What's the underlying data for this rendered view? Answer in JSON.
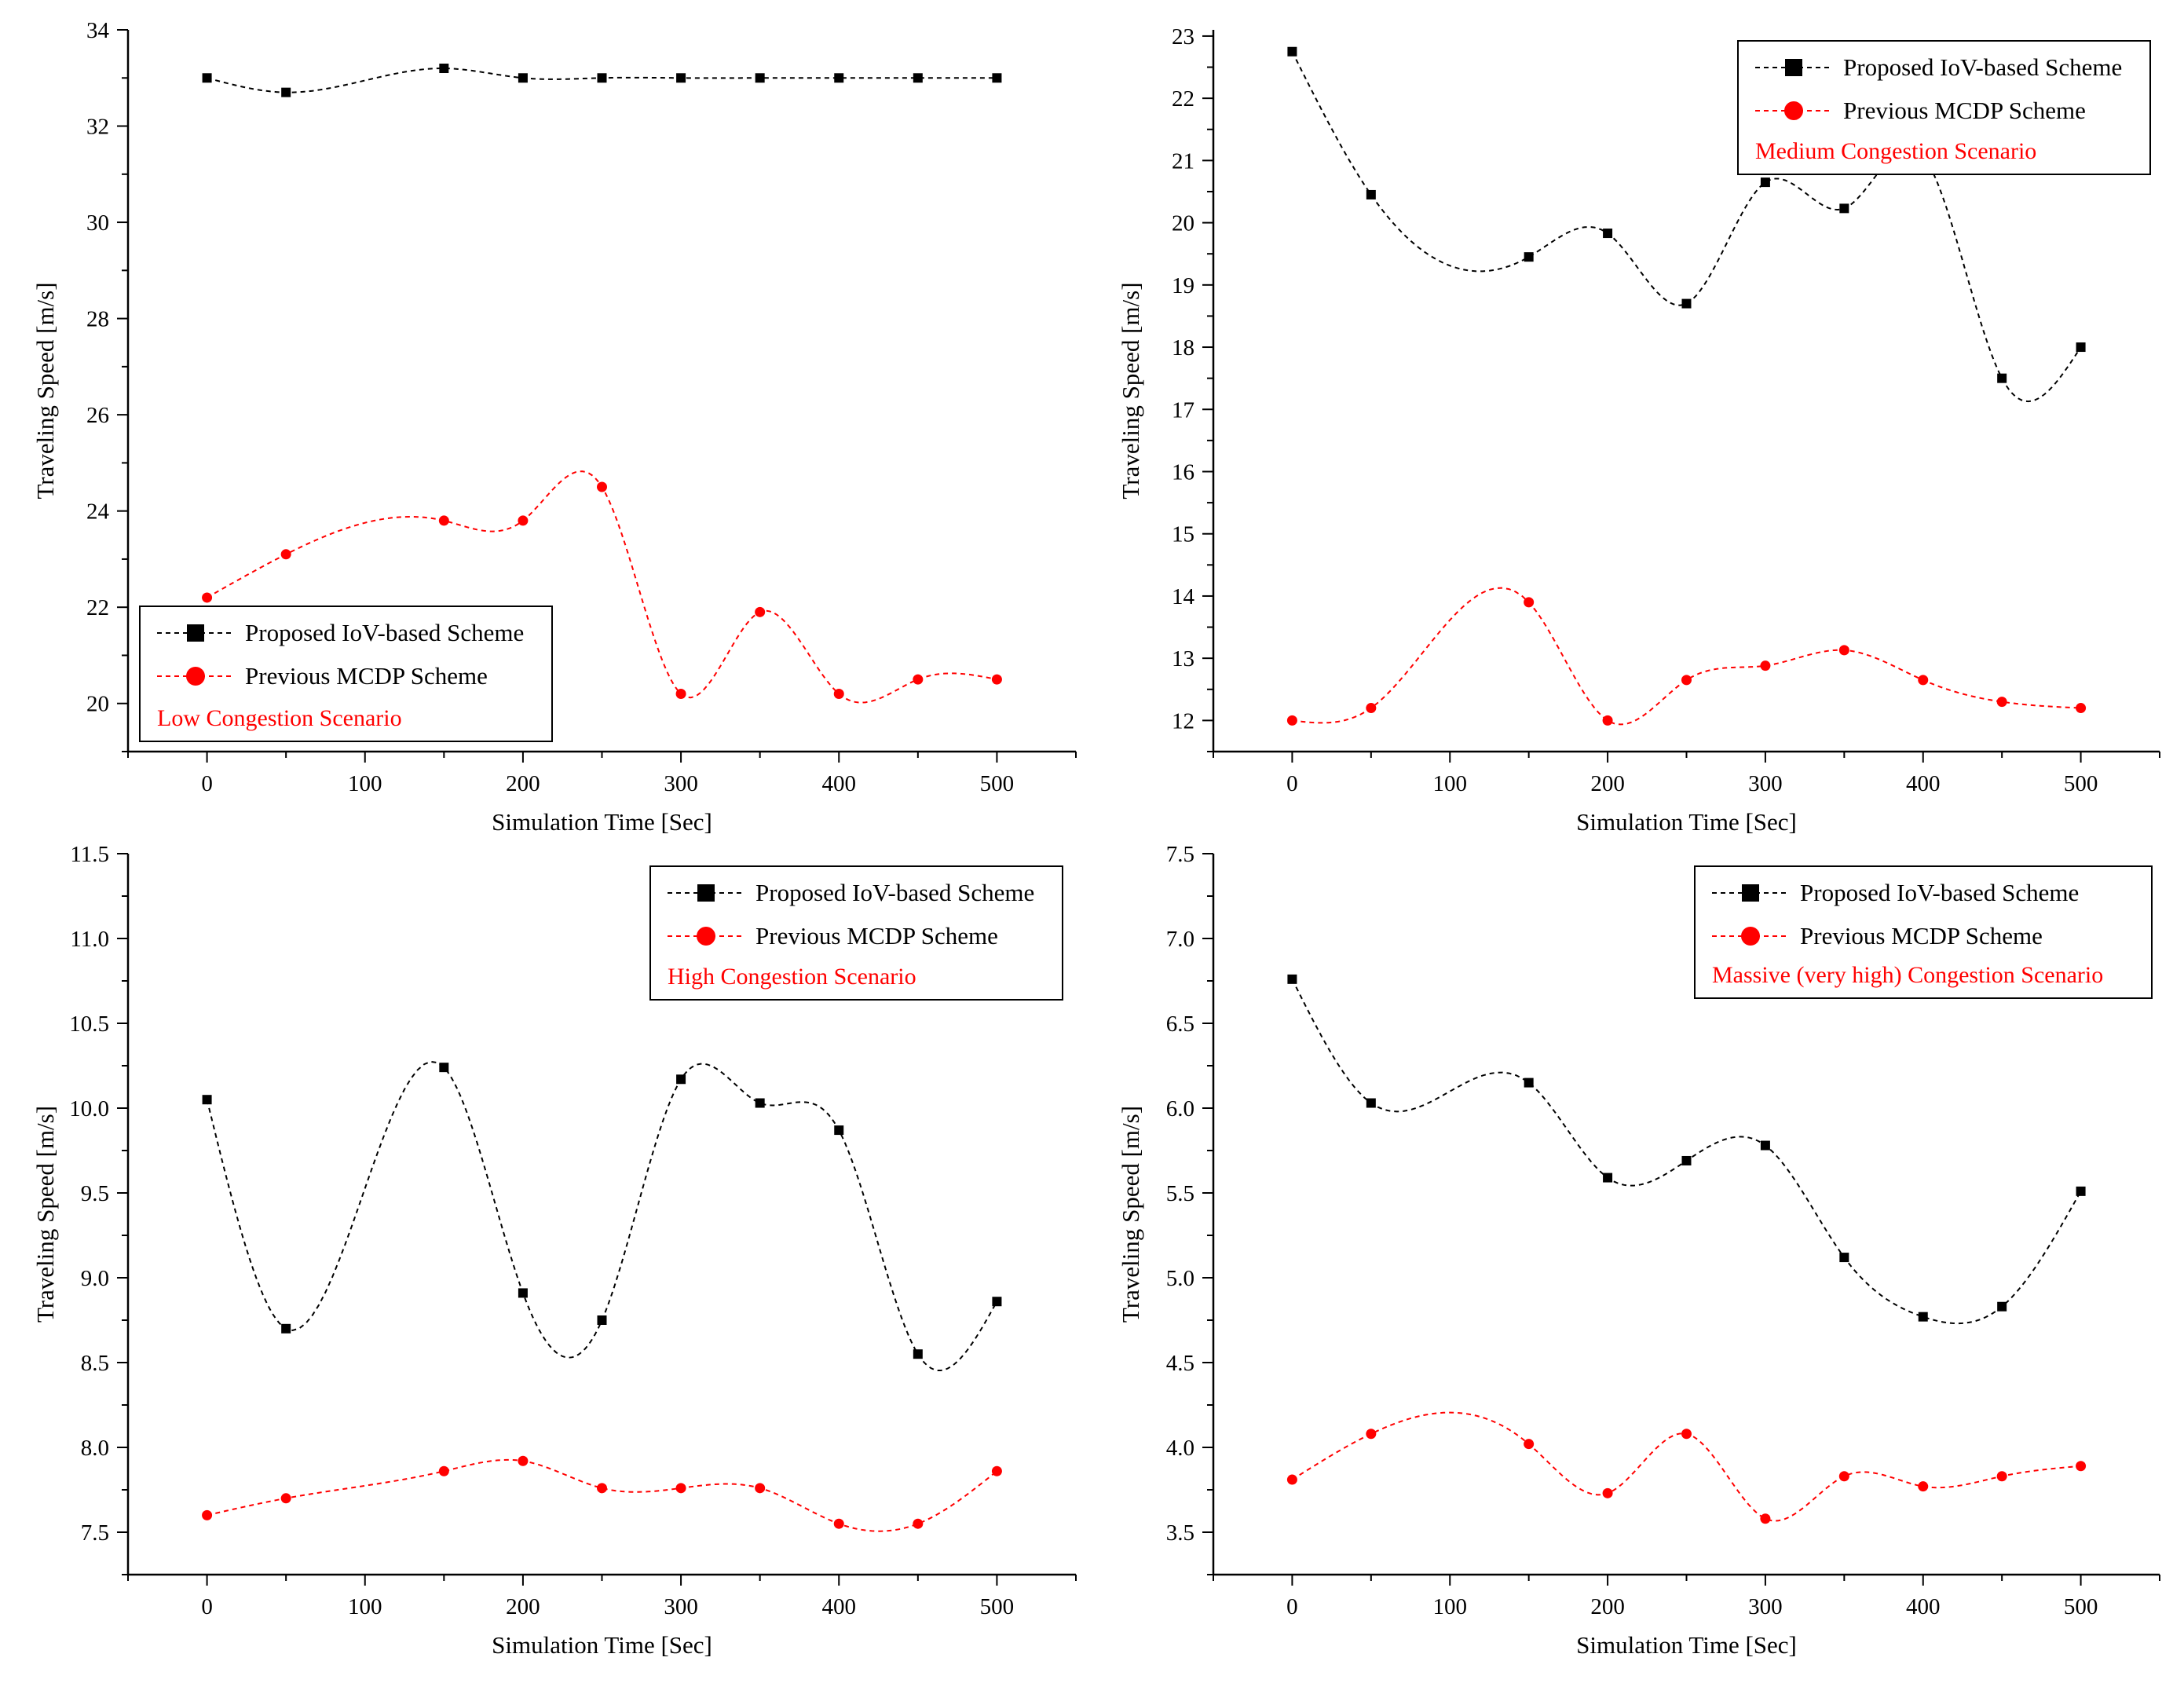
{
  "colors": {
    "proposed": "#000000",
    "previous": "#ff0000",
    "scenario_text": "#ff0000",
    "axis": "#000000",
    "background": "#ffffff"
  },
  "chart_data": [
    {
      "type": "line",
      "smooth": true,
      "x": [
        0,
        50,
        150,
        200,
        250,
        300,
        350,
        400,
        450,
        500
      ],
      "xlim": [
        -50,
        550
      ],
      "ylim": [
        19,
        34
      ],
      "xticks": [
        0,
        100,
        200,
        300,
        400,
        500
      ],
      "yticks": [
        20,
        22,
        24,
        26,
        28,
        30,
        32,
        34
      ],
      "xlabel": "Simulation Time [Sec]",
      "ylabel": "Traveling Speed [m/s]",
      "grid": false,
      "legend_position": "bottom-left",
      "scenario": "Low Congestion Scenario",
      "series": [
        {
          "name": "Proposed IoV-based Scheme",
          "marker": "square",
          "color": "#000000",
          "values": [
            33.0,
            32.7,
            33.2,
            33.0,
            33.0,
            33.0,
            33.0,
            33.0,
            33.0,
            33.0
          ]
        },
        {
          "name": "Previous MCDP Scheme",
          "marker": "circle",
          "color": "#ff0000",
          "values": [
            22.2,
            23.1,
            23.8,
            23.8,
            24.5,
            20.2,
            21.9,
            20.2,
            20.5,
            20.5
          ]
        }
      ]
    },
    {
      "type": "line",
      "smooth": true,
      "x": [
        0,
        50,
        150,
        200,
        250,
        300,
        350,
        400,
        450,
        500
      ],
      "xlim": [
        -50,
        550
      ],
      "ylim": [
        11.5,
        23.1
      ],
      "xticks": [
        0,
        100,
        200,
        300,
        400,
        500
      ],
      "yticks": [
        12,
        13,
        14,
        15,
        16,
        17,
        18,
        19,
        20,
        21,
        22,
        23
      ],
      "xlabel": "Simulation Time [Sec]",
      "ylabel": "Traveling Speed [m/s]",
      "grid": false,
      "legend_position": "top-right",
      "scenario": "Medium Congestion Scenario",
      "series": [
        {
          "name": "Proposed IoV-based Scheme",
          "marker": "square",
          "color": "#000000",
          "values": [
            22.75,
            20.45,
            19.45,
            19.83,
            18.7,
            20.65,
            20.23,
            21.08,
            17.5,
            18.0
          ]
        },
        {
          "name": "Previous MCDP Scheme",
          "marker": "circle",
          "color": "#ff0000",
          "values": [
            12.0,
            12.2,
            13.9,
            12.0,
            12.65,
            12.88,
            13.13,
            12.65,
            12.3,
            12.2
          ]
        }
      ]
    },
    {
      "type": "line",
      "smooth": true,
      "x": [
        0,
        50,
        150,
        200,
        250,
        300,
        350,
        400,
        450,
        500
      ],
      "xlim": [
        -50,
        550
      ],
      "ylim": [
        7.25,
        11.5
      ],
      "xticks": [
        0,
        100,
        200,
        300,
        400,
        500
      ],
      "yticks": [
        7.5,
        8.0,
        8.5,
        9.0,
        9.5,
        10.0,
        10.5,
        11.0,
        11.5
      ],
      "xlabel": "Simulation Time [Sec]",
      "ylabel": "Traveling Speed [m/s]",
      "grid": false,
      "legend_position": "top-right",
      "scenario": "High Congestion Scenario",
      "series": [
        {
          "name": "Proposed IoV-based Scheme",
          "marker": "square",
          "color": "#000000",
          "values": [
            10.05,
            8.7,
            10.24,
            8.91,
            8.75,
            10.17,
            10.03,
            9.87,
            8.55,
            8.86
          ]
        },
        {
          "name": "Previous MCDP Scheme",
          "marker": "circle",
          "color": "#ff0000",
          "values": [
            7.6,
            7.7,
            7.86,
            7.92,
            7.76,
            7.76,
            7.76,
            7.55,
            7.55,
            7.86
          ]
        }
      ]
    },
    {
      "type": "line",
      "smooth": true,
      "x": [
        0,
        50,
        150,
        200,
        250,
        300,
        350,
        400,
        450,
        500
      ],
      "xlim": [
        -50,
        550
      ],
      "ylim": [
        3.25,
        7.5
      ],
      "xticks": [
        0,
        100,
        200,
        300,
        400,
        500
      ],
      "yticks": [
        3.5,
        4.0,
        4.5,
        5.0,
        5.5,
        6.0,
        6.5,
        7.0,
        7.5
      ],
      "xlabel": "Simulation Time [Sec]",
      "ylabel": "Traveling Speed [m/s]",
      "grid": false,
      "legend_position": "top-right",
      "scenario": "Massive (very high) Congestion Scenario",
      "series": [
        {
          "name": "Proposed IoV-based Scheme",
          "marker": "square",
          "color": "#000000",
          "values": [
            6.76,
            6.03,
            6.15,
            5.59,
            5.69,
            5.78,
            5.12,
            4.77,
            4.83,
            5.51
          ]
        },
        {
          "name": "Previous MCDP Scheme",
          "marker": "circle",
          "color": "#ff0000",
          "values": [
            3.81,
            4.08,
            4.02,
            3.73,
            4.08,
            3.58,
            3.83,
            3.77,
            3.83,
            3.89
          ]
        }
      ]
    }
  ]
}
